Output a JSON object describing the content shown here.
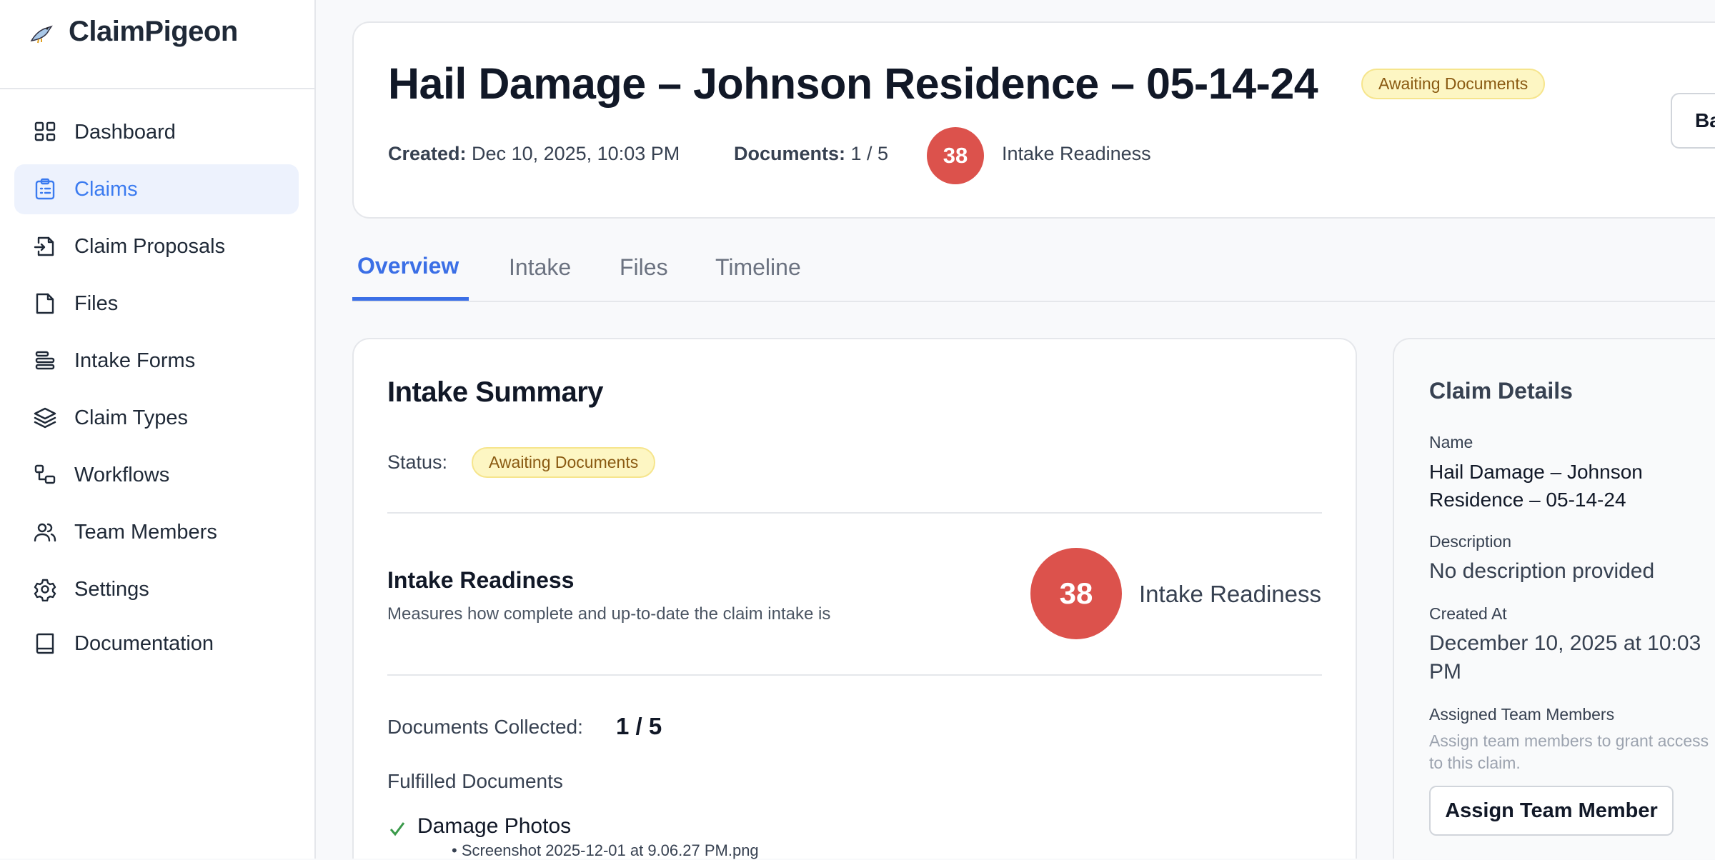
{
  "app": {
    "name": "ClaimPigeon",
    "logo_icon": "pigeon-icon"
  },
  "sidebar": {
    "items": [
      {
        "label": "Dashboard",
        "icon": "grid-icon"
      },
      {
        "label": "Claims",
        "icon": "clipboard-list-icon",
        "active": true
      },
      {
        "label": "Claim Proposals",
        "icon": "file-import-icon"
      },
      {
        "label": "Files",
        "icon": "file-icon"
      },
      {
        "label": "Intake Forms",
        "icon": "align-left-icon"
      },
      {
        "label": "Claim Types",
        "icon": "layers-icon"
      },
      {
        "label": "Workflows",
        "icon": "workflow-icon"
      },
      {
        "label": "Team Members",
        "icon": "users-icon"
      },
      {
        "label": "Settings",
        "icon": "gear-icon"
      },
      {
        "label": "Documentation",
        "icon": "book-icon"
      }
    ]
  },
  "header": {
    "title": "Hail Damage – Johnson Residence – 05-14-24",
    "status": "Awaiting Documents",
    "created_label": "Created:",
    "created_value": "Dec 10, 2025, 10:03 PM",
    "documents_label": "Documents:",
    "documents_value": "1 / 5",
    "readiness_score": "38",
    "readiness_label": "Intake Readiness",
    "back_button": "Ba"
  },
  "tabs": [
    {
      "label": "Overview",
      "active": true
    },
    {
      "label": "Intake"
    },
    {
      "label": "Files"
    },
    {
      "label": "Timeline"
    }
  ],
  "summary": {
    "title": "Intake Summary",
    "status_label": "Status:",
    "status": "Awaiting Documents",
    "readiness_title": "Intake Readiness",
    "readiness_desc": "Measures how complete and up-to-date the claim intake is",
    "readiness_score": "38",
    "readiness_label": "Intake Readiness",
    "docs_label": "Documents Collected:",
    "docs_value": "1 / 5",
    "fulfilled_title": "Fulfilled Documents",
    "fulfilled": [
      {
        "name": "Damage Photos",
        "files": [
          "Screenshot 2025-12-01 at 9.06.27 PM.png"
        ]
      }
    ]
  },
  "details": {
    "title": "Claim Details",
    "name_label": "Name",
    "name_value": "Hail Damage – Johnson Residence – 05-14-24",
    "desc_label": "Description",
    "desc_value": "No description provided",
    "created_label": "Created At",
    "created_value": "December 10, 2025 at 10:03 PM",
    "assigned_label": "Assigned Team Members",
    "assigned_hint": "Assign team members to grant access to this claim.",
    "assign_button": "Assign Team Member"
  },
  "colors": {
    "accent": "#3b6fe6",
    "score": "#dc524c",
    "badge_bg": "#fdf6c3",
    "badge_text": "#8a5a12",
    "check": "#3a9a4a"
  }
}
